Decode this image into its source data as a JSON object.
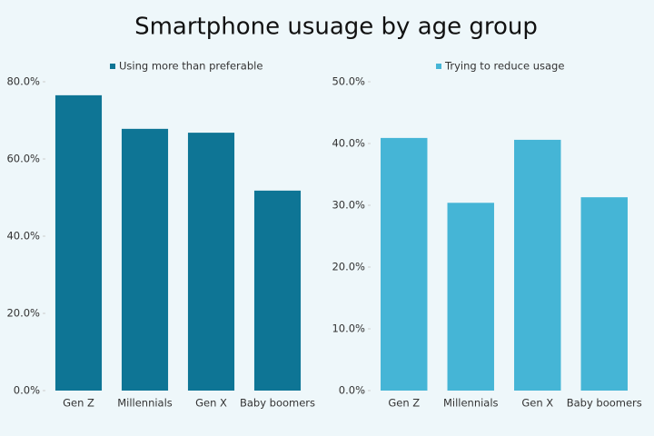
{
  "title": "Smartphone usuage by age group",
  "chart_data": [
    {
      "type": "bar",
      "categories": [
        "Gen Z",
        "Millennials",
        "Gen X",
        "Baby boomers"
      ],
      "series": [
        {
          "name": "Using more than preferable",
          "color": "#0e7595",
          "values": [
            76.5,
            67.8,
            66.8,
            51.8
          ]
        }
      ],
      "ylim": [
        0,
        80
      ],
      "yticks": [
        {
          "value": 0,
          "label": "0.0%"
        },
        {
          "value": 20,
          "label": "20.0%"
        },
        {
          "value": 40,
          "label": "40.0%"
        },
        {
          "value": 60,
          "label": "60.0%"
        },
        {
          "value": 80,
          "label": "80.0%"
        }
      ]
    },
    {
      "type": "bar",
      "categories": [
        "Gen Z",
        "Millennials",
        "Gen X",
        "Baby boomers"
      ],
      "series": [
        {
          "name": "Trying to reduce usage",
          "color": "#45b5d6",
          "values": [
            40.9,
            30.4,
            40.6,
            31.3
          ]
        }
      ],
      "ylim": [
        0,
        50
      ],
      "yticks": [
        {
          "value": 0,
          "label": "0.0%"
        },
        {
          "value": 10,
          "label": "10.0%"
        },
        {
          "value": 20,
          "label": "20.0%"
        },
        {
          "value": 30,
          "label": "30.0%"
        },
        {
          "value": 40,
          "label": "40.0%"
        },
        {
          "value": 50,
          "label": "50.0%"
        }
      ]
    }
  ]
}
